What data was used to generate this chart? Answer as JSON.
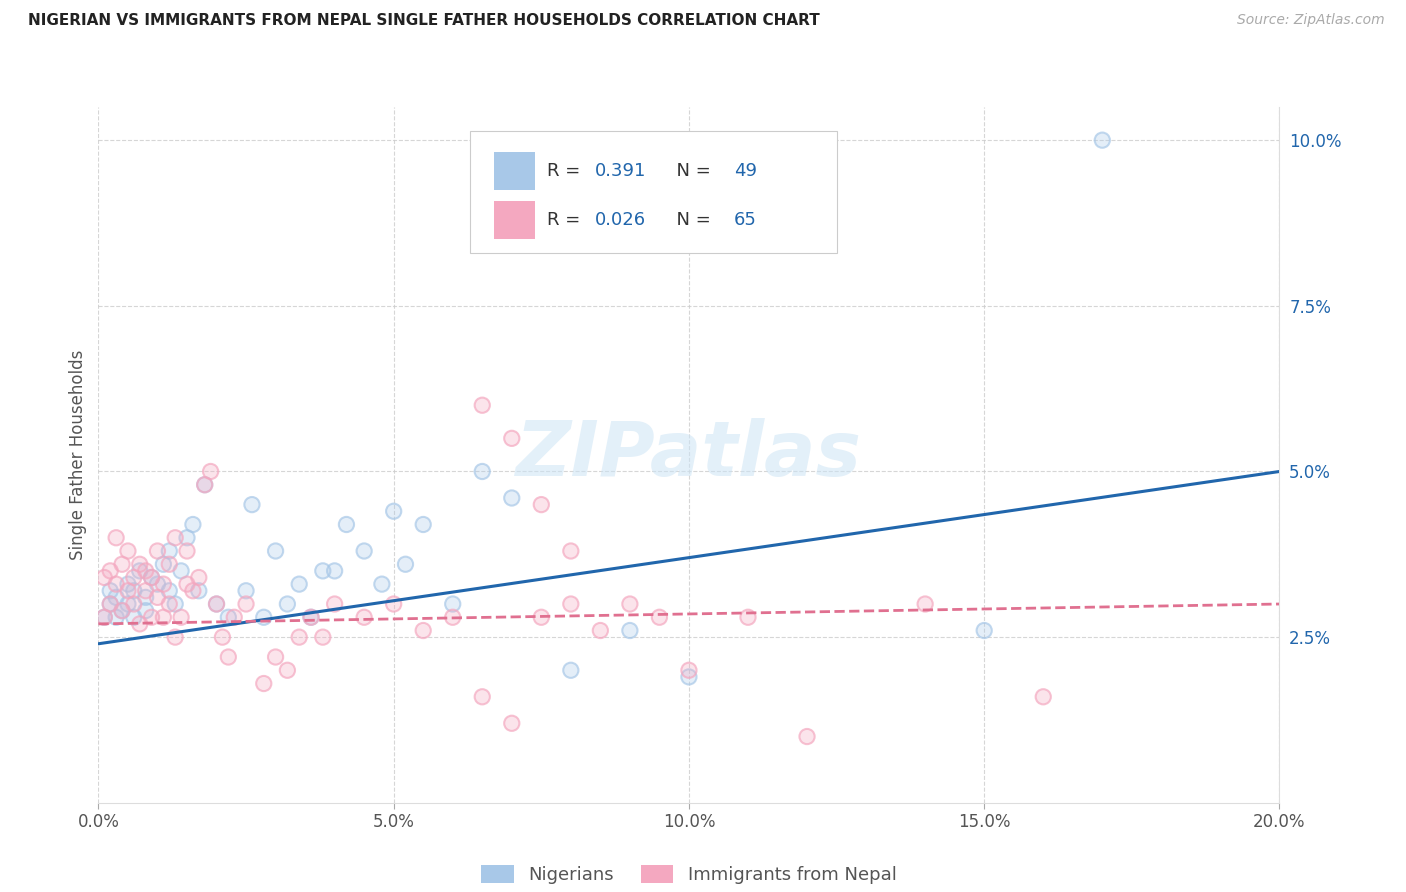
{
  "title": "NIGERIAN VS IMMIGRANTS FROM NEPAL SINGLE FATHER HOUSEHOLDS CORRELATION CHART",
  "source": "Source: ZipAtlas.com",
  "ylabel": "Single Father Households",
  "x_min": 0.0,
  "x_max": 0.2,
  "y_min": 0.0,
  "y_max": 0.105,
  "x_ticks": [
    0.0,
    0.05,
    0.1,
    0.15,
    0.2
  ],
  "x_tick_labels": [
    "0.0%",
    "5.0%",
    "10.0%",
    "15.0%",
    "20.0%"
  ],
  "y_ticks": [
    0.025,
    0.05,
    0.075,
    0.1
  ],
  "y_tick_labels": [
    "2.5%",
    "5.0%",
    "7.5%",
    "10.0%"
  ],
  "legend_labels": [
    "Nigerians",
    "Immigrants from Nepal"
  ],
  "r_nigerian": "0.391",
  "n_nigerian": "49",
  "r_nepal": "0.026",
  "n_nepal": "65",
  "blue_scatter_color": "#a8c8e8",
  "pink_scatter_color": "#f4a8c0",
  "blue_line_color": "#2166ac",
  "pink_line_color": "#e07090",
  "watermark": "ZIPatlas",
  "background_color": "#ffffff",
  "grid_color": "#cccccc",
  "nigerian_x": [
    0.001,
    0.002,
    0.002,
    0.003,
    0.003,
    0.004,
    0.005,
    0.005,
    0.006,
    0.006,
    0.007,
    0.008,
    0.008,
    0.009,
    0.01,
    0.011,
    0.012,
    0.012,
    0.013,
    0.014,
    0.015,
    0.016,
    0.017,
    0.018,
    0.02,
    0.022,
    0.025,
    0.026,
    0.028,
    0.03,
    0.032,
    0.034,
    0.036,
    0.038,
    0.04,
    0.042,
    0.045,
    0.048,
    0.05,
    0.052,
    0.055,
    0.06,
    0.065,
    0.07,
    0.08,
    0.09,
    0.1,
    0.15,
    0.17
  ],
  "nigerian_y": [
    0.028,
    0.03,
    0.032,
    0.028,
    0.031,
    0.029,
    0.033,
    0.03,
    0.032,
    0.028,
    0.035,
    0.031,
    0.029,
    0.034,
    0.033,
    0.036,
    0.038,
    0.032,
    0.03,
    0.035,
    0.04,
    0.042,
    0.032,
    0.048,
    0.03,
    0.028,
    0.032,
    0.045,
    0.028,
    0.038,
    0.03,
    0.033,
    0.028,
    0.035,
    0.035,
    0.042,
    0.038,
    0.033,
    0.044,
    0.036,
    0.042,
    0.03,
    0.05,
    0.046,
    0.02,
    0.026,
    0.019,
    0.026,
    0.1
  ],
  "nepal_x": [
    0.001,
    0.001,
    0.002,
    0.002,
    0.003,
    0.003,
    0.004,
    0.004,
    0.005,
    0.005,
    0.006,
    0.006,
    0.007,
    0.007,
    0.008,
    0.008,
    0.009,
    0.009,
    0.01,
    0.01,
    0.011,
    0.011,
    0.012,
    0.012,
    0.013,
    0.013,
    0.014,
    0.015,
    0.015,
    0.016,
    0.017,
    0.018,
    0.019,
    0.02,
    0.021,
    0.022,
    0.023,
    0.025,
    0.028,
    0.03,
    0.032,
    0.034,
    0.036,
    0.038,
    0.04,
    0.045,
    0.05,
    0.055,
    0.06,
    0.065,
    0.07,
    0.075,
    0.08,
    0.085,
    0.09,
    0.095,
    0.1,
    0.11,
    0.12,
    0.14,
    0.16,
    0.065,
    0.07,
    0.075,
    0.08
  ],
  "nepal_y": [
    0.028,
    0.034,
    0.03,
    0.035,
    0.033,
    0.04,
    0.029,
    0.036,
    0.032,
    0.038,
    0.03,
    0.034,
    0.027,
    0.036,
    0.032,
    0.035,
    0.028,
    0.034,
    0.031,
    0.038,
    0.028,
    0.033,
    0.036,
    0.03,
    0.04,
    0.025,
    0.028,
    0.033,
    0.038,
    0.032,
    0.034,
    0.048,
    0.05,
    0.03,
    0.025,
    0.022,
    0.028,
    0.03,
    0.018,
    0.022,
    0.02,
    0.025,
    0.028,
    0.025,
    0.03,
    0.028,
    0.03,
    0.026,
    0.028,
    0.016,
    0.012,
    0.028,
    0.03,
    0.026,
    0.03,
    0.028,
    0.02,
    0.028,
    0.01,
    0.03,
    0.016,
    0.06,
    0.055,
    0.045,
    0.038
  ]
}
